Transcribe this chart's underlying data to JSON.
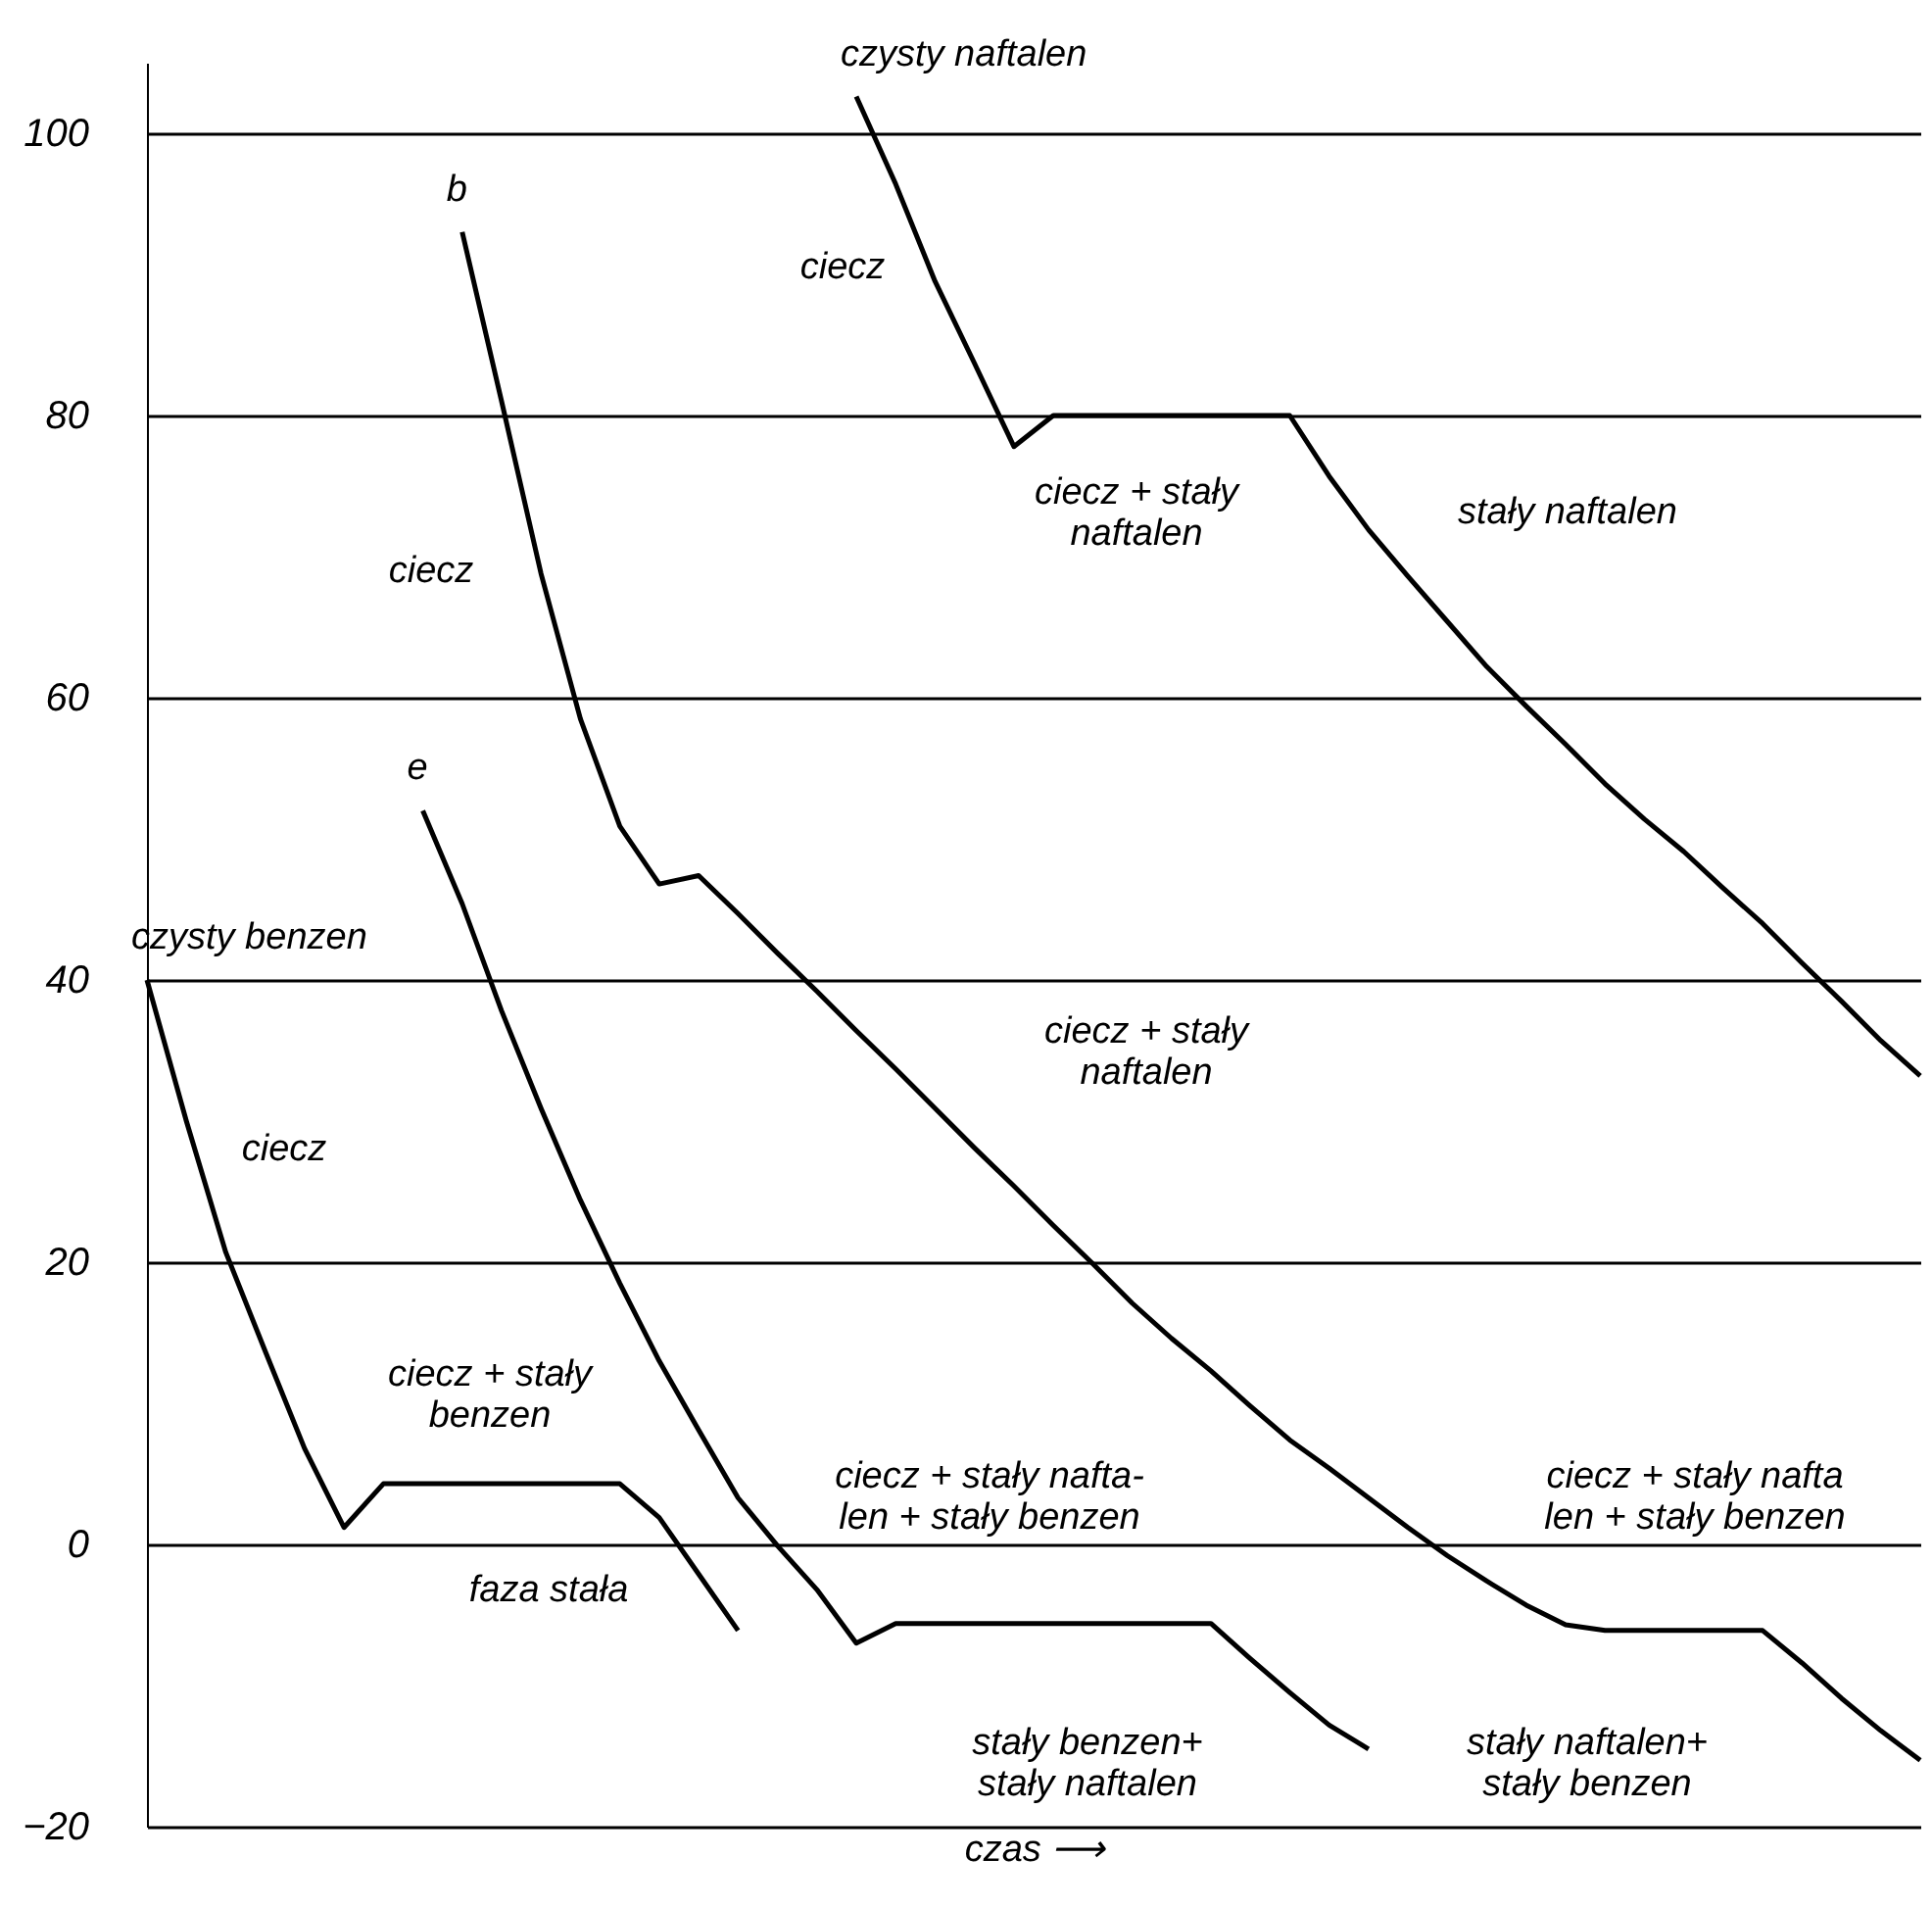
{
  "chart_data": {
    "type": "line",
    "xlabel": "czas ⟶",
    "categories": [
      null,
      null,
      null,
      null,
      null,
      null,
      null,
      null,
      null,
      null,
      null,
      null,
      null,
      null,
      null,
      null,
      null,
      null,
      null,
      null,
      null,
      null,
      null,
      null,
      null,
      null,
      null,
      null,
      null,
      null,
      null,
      null,
      null,
      null,
      null,
      null,
      null,
      null,
      null,
      null,
      null,
      null,
      null,
      null,
      null,
      null
    ],
    "series": [
      {
        "name": "czysty benzen",
        "color": "#000000",
        "values": [
          40,
          30,
          20.7,
          13.7,
          6.8,
          1.2,
          4.3,
          4.3,
          4.3,
          4.3,
          4.3,
          4.3,
          4.3,
          1.9,
          -2.1,
          -6.1,
          null,
          null,
          null,
          null,
          null,
          null,
          null,
          null,
          null,
          null,
          null,
          null,
          null,
          null,
          null,
          null,
          null,
          null,
          null,
          null,
          null,
          null,
          null,
          null,
          null,
          null,
          null,
          null,
          null,
          null
        ]
      },
      {
        "name": "e",
        "color": "#000000",
        "values": [
          null,
          null,
          null,
          null,
          null,
          null,
          null,
          52,
          45.4,
          37.8,
          30.9,
          24.4,
          18.5,
          13,
          8.1,
          3.3,
          -0.1,
          -3.2,
          -7,
          -5.6,
          -5.6,
          -5.6,
          -5.6,
          -5.6,
          -5.6,
          -5.6,
          -5.6,
          -5.6,
          -8.1,
          -10.5,
          -12.8,
          -14.5,
          null,
          null,
          null,
          null,
          null,
          null,
          null,
          null,
          null,
          null,
          null,
          null,
          null,
          null
        ]
      },
      {
        "name": "b",
        "color": "#000000",
        "values": [
          null,
          null,
          null,
          null,
          null,
          null,
          null,
          null,
          93,
          81,
          68.8,
          58.5,
          50.9,
          46.8,
          47.4,
          44.7,
          41.9,
          39.2,
          36.4,
          33.7,
          30.9,
          28.1,
          25.4,
          22.6,
          19.9,
          17.1,
          14.6,
          12.3,
          9.8,
          7.4,
          5.4,
          3.3,
          1.2,
          -0.8,
          -2.6,
          -4.3,
          -5.7,
          -6.1,
          -6.1,
          -6.1,
          -6.1,
          -6.1,
          -8.4,
          -10.9,
          -13.2,
          -15.3
        ]
      },
      {
        "name": "czysty naftalen",
        "color": "#000000",
        "values": [
          null,
          null,
          null,
          null,
          null,
          null,
          null,
          null,
          null,
          null,
          null,
          null,
          null,
          null,
          null,
          null,
          null,
          null,
          102.6,
          96.4,
          89.5,
          83.7,
          77.8,
          80,
          80,
          80,
          80,
          80,
          80,
          80,
          75.7,
          71.9,
          68.6,
          65.4,
          62.2,
          59.4,
          56.7,
          53.9,
          51.4,
          49.1,
          46.5,
          44,
          41.2,
          38.5,
          35.7,
          33.2
        ]
      }
    ],
    "ylim": [
      -20,
      105
    ],
    "yticks": [
      -20,
      0,
      20,
      40,
      60,
      80,
      100
    ],
    "grid": "y",
    "tick_labels": "y",
    "line_style": "solid",
    "annotations": [
      "ciecz",
      "ciecz + stały\nnaftalen",
      "stały naftalen",
      "ciecz",
      "ciecz + stały\nnaftalen",
      "ciecz",
      "ciecz + stały\nbenzen",
      "faza stała",
      "ciecz + stały nafta-\nlen + stały benzen",
      "ciecz + stały nafta\nlen + stały benzen",
      "stały benzen+\nstały naftalen",
      "stały naftalen+\nstały benzen"
    ]
  }
}
